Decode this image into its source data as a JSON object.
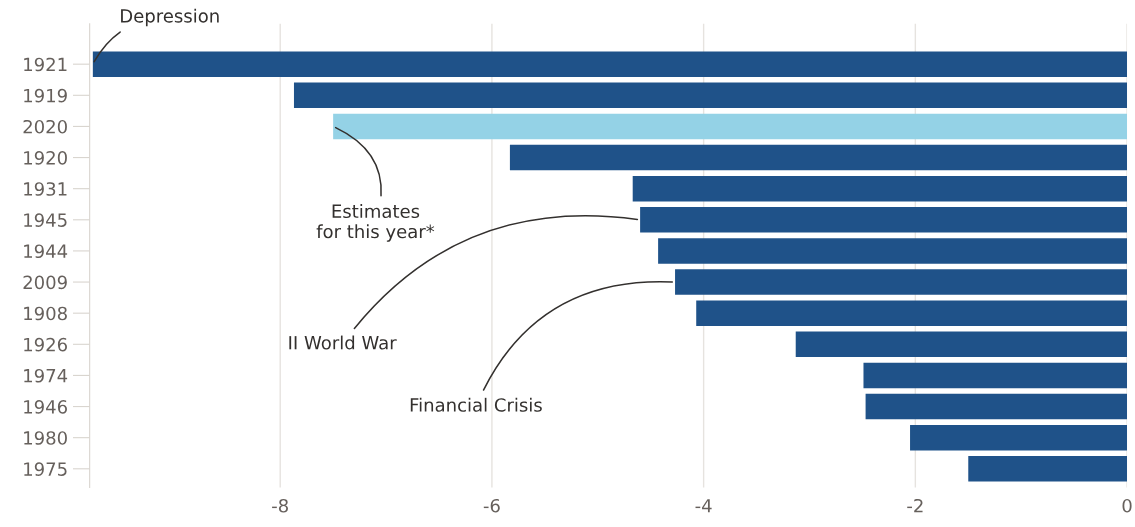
{
  "chart_data": {
    "type": "bar",
    "orientation": "horizontal",
    "categories": [
      "1921",
      "1919",
      "2020",
      "1920",
      "1931",
      "1945",
      "1944",
      "2009",
      "1908",
      "1926",
      "1974",
      "1946",
      "1980",
      "1975"
    ],
    "values": [
      -9.77,
      -7.87,
      -7.5,
      -5.83,
      -4.67,
      -4.6,
      -4.43,
      -4.27,
      -4.07,
      -3.13,
      -2.49,
      -2.47,
      -2.05,
      -1.5
    ],
    "colors": [
      "#1f5289",
      "#1f5289",
      "#94d2e6",
      "#1f5289",
      "#1f5289",
      "#1f5289",
      "#1f5289",
      "#1f5289",
      "#1f5289",
      "#1f5289",
      "#1f5289",
      "#1f5289",
      "#1f5289",
      "#1f5289"
    ],
    "xlim": [
      -9.8,
      0
    ],
    "xticks": [
      -8,
      -6,
      -4,
      -2,
      0
    ],
    "grid": "x",
    "annotations": [
      {
        "text": "Depression",
        "x": -9.77,
        "y": "1921"
      },
      {
        "text": "Estimates\nfor this year*",
        "x": -7.5,
        "y": "2020"
      },
      {
        "text": "II World War",
        "x": -4.6,
        "y": "1945"
      },
      {
        "text": "Financial Crisis",
        "x": -4.27,
        "y": "2009"
      }
    ]
  }
}
